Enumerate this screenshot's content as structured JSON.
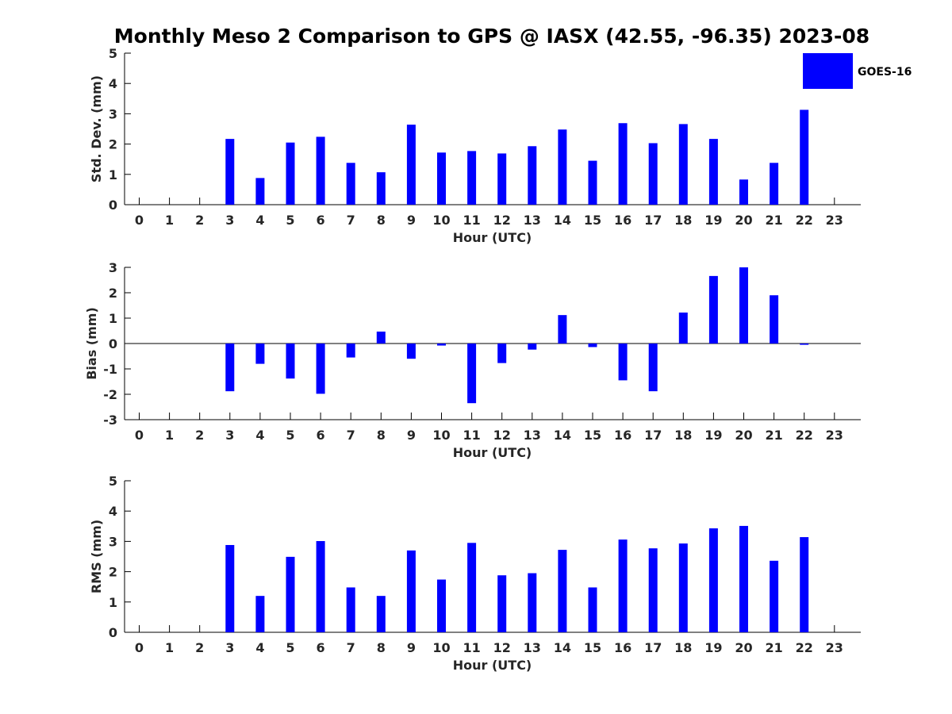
{
  "colors": {
    "bar": "#0000ff",
    "axis": "#000000",
    "text": "#262626",
    "background": "#ffffff"
  },
  "chart_data": {
    "title": "Monthly Meso 2 Comparison to GPS @ IASX (42.55, -96.35) 2023-08",
    "legend": {
      "entries": [
        "GOES-16"
      ],
      "placement": "top-right"
    },
    "panels": [
      {
        "type": "bar",
        "xlabel": "Hour (UTC)",
        "ylabel": "Std. Dev. (mm)",
        "ylim": [
          0,
          5
        ],
        "yticks": [
          0,
          1,
          2,
          3,
          4,
          5
        ],
        "grid": false,
        "x": [
          0,
          1,
          2,
          3,
          4,
          5,
          6,
          7,
          8,
          9,
          10,
          11,
          12,
          13,
          14,
          15,
          16,
          17,
          18,
          19,
          20,
          21,
          22,
          23
        ],
        "series": [
          {
            "name": "GOES-16",
            "values": [
              null,
              null,
              null,
              2.17,
              0.88,
              2.05,
              2.24,
              1.38,
              1.07,
              2.64,
              1.72,
              1.77,
              1.69,
              1.93,
              2.48,
              1.45,
              2.69,
              2.03,
              2.66,
              2.17,
              0.83,
              1.38,
              3.13,
              null
            ]
          }
        ]
      },
      {
        "type": "bar",
        "xlabel": "Hour (UTC)",
        "ylabel": "Bias (mm)",
        "ylim": [
          -3,
          3
        ],
        "yticks": [
          -3,
          -2,
          -1,
          0,
          1,
          2,
          3
        ],
        "grid": false,
        "x": [
          0,
          1,
          2,
          3,
          4,
          5,
          6,
          7,
          8,
          9,
          10,
          11,
          12,
          13,
          14,
          15,
          16,
          17,
          18,
          19,
          20,
          21,
          22,
          23
        ],
        "series": [
          {
            "name": "GOES-16",
            "values": [
              null,
              null,
              null,
              -1.88,
              -0.8,
              -1.38,
              -1.98,
              -0.55,
              0.47,
              -0.6,
              -0.08,
              -2.35,
              -0.77,
              -0.24,
              1.12,
              -0.14,
              -1.45,
              -1.88,
              1.22,
              2.66,
              3.0,
              1.9,
              -0.05,
              null
            ]
          }
        ]
      },
      {
        "type": "bar",
        "xlabel": "Hour (UTC)",
        "ylabel": "RMS (mm)",
        "ylim": [
          0,
          5
        ],
        "yticks": [
          0,
          1,
          2,
          3,
          4,
          5
        ],
        "grid": false,
        "x": [
          0,
          1,
          2,
          3,
          4,
          5,
          6,
          7,
          8,
          9,
          10,
          11,
          12,
          13,
          14,
          15,
          16,
          17,
          18,
          19,
          20,
          21,
          22,
          23
        ],
        "series": [
          {
            "name": "GOES-16",
            "values": [
              null,
              null,
              null,
              2.88,
              1.2,
              2.49,
              3.01,
              1.48,
              1.2,
              2.7,
              1.74,
              2.95,
              1.88,
              1.95,
              2.72,
              1.48,
              3.06,
              2.77,
              2.93,
              3.43,
              3.51,
              2.36,
              3.14,
              null
            ]
          }
        ]
      }
    ]
  }
}
